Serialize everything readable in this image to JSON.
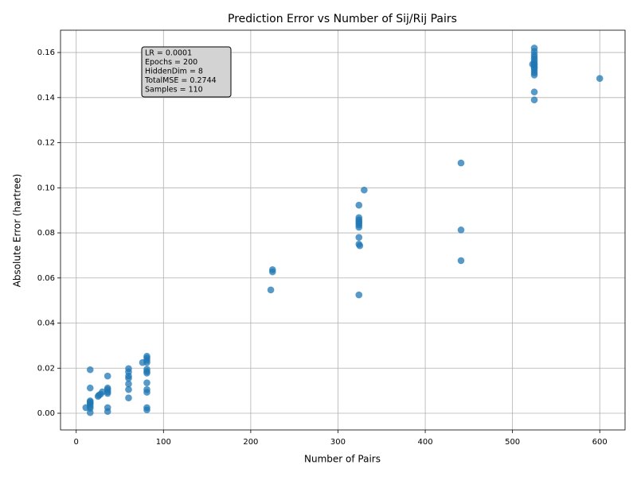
{
  "chart_data": {
    "type": "scatter",
    "title": "Prediction Error vs Number of Sij/Rij Pairs",
    "x_label": "Number of Pairs",
    "y_label": "Absolute Error (hartree)",
    "annotation": [
      "LR = 0.0001",
      "Epochs = 200",
      "HiddenDim = 8",
      "TotalMSE = 0.2744",
      "Samples = 110"
    ],
    "color": "#1f77b4",
    "grid": true,
    "xlim": [
      -18,
      629
    ],
    "ylim": [
      -0.0074,
      0.1699
    ],
    "xticks": [
      0,
      100,
      200,
      300,
      400,
      500,
      600
    ],
    "yticks": [
      {
        "value": 0,
        "label": "0.00"
      },
      {
        "value": 0.02,
        "label": "0.02"
      },
      {
        "value": 0.04,
        "label": "0.04"
      },
      {
        "value": 0.06,
        "label": "0.06"
      },
      {
        "value": 0.08,
        "label": "0.08"
      },
      {
        "value": 0.1,
        "label": "0.10"
      },
      {
        "value": 0.12,
        "label": "0.12"
      },
      {
        "value": 0.14,
        "label": "0.14"
      },
      {
        "value": 0.16,
        "label": "0.16"
      }
    ],
    "x": [
      16,
      16,
      16,
      16,
      16,
      16,
      16,
      16,
      16,
      11,
      25,
      26,
      28,
      30,
      36,
      36,
      36,
      36,
      36,
      36,
      36,
      60,
      60,
      60,
      60,
      60,
      60,
      60,
      76,
      81,
      81,
      81,
      81,
      81,
      81,
      81,
      81,
      81,
      81,
      81,
      81,
      225,
      225,
      223,
      330,
      324,
      324,
      324,
      324,
      324,
      324,
      324,
      324,
      324,
      325,
      324,
      441,
      441,
      441,
      525,
      525,
      525,
      525,
      525,
      525,
      525,
      525,
      525,
      525,
      525,
      525,
      525,
      525,
      525,
      523,
      600
    ],
    "values": [
      0.0193,
      0.0112,
      0.0055,
      0.005,
      0.0045,
      0.004,
      0.003,
      0.0022,
      0.0003,
      0.0025,
      0.0075,
      0.008,
      0.0085,
      0.0095,
      0.0165,
      0.0112,
      0.0105,
      0.0095,
      0.0088,
      0.0025,
      0.0008,
      0.0198,
      0.0183,
      0.0165,
      0.0155,
      0.013,
      0.0105,
      0.0068,
      0.0225,
      0.0253,
      0.0245,
      0.0235,
      0.0225,
      0.0195,
      0.0185,
      0.0178,
      0.0135,
      0.0105,
      0.0093,
      0.0025,
      0.0015,
      0.0637,
      0.0627,
      0.0547,
      0.099,
      0.0923,
      0.0868,
      0.0858,
      0.085,
      0.0843,
      0.0835,
      0.0825,
      0.078,
      0.075,
      0.0743,
      0.0525,
      0.111,
      0.0813,
      0.0677,
      0.162,
      0.1605,
      0.159,
      0.158,
      0.157,
      0.156,
      0.155,
      0.1545,
      0.1535,
      0.153,
      0.152,
      0.151,
      0.15,
      0.1425,
      0.139,
      0.1548,
      0.1485
    ]
  }
}
